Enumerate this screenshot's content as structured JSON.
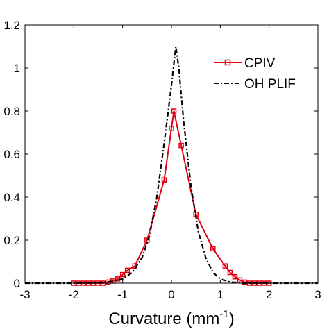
{
  "chart_data": {
    "type": "line",
    "title": "",
    "xlabel": "Curvature (mm",
    "xlabel_sup": "-1",
    "xlabel_close": ")",
    "ylabel": "",
    "xlim": [
      -3,
      3
    ],
    "ylim": [
      0,
      1.2
    ],
    "xticks": [
      -3,
      -2,
      -1,
      0,
      1,
      2,
      3
    ],
    "xtick_labels": [
      "-3",
      "-2",
      "-1",
      "0",
      "1",
      "2",
      "3"
    ],
    "yticks": [
      0,
      0.2,
      0.4,
      0.6,
      0.8,
      1,
      1.2
    ],
    "ytick_labels": [
      "0",
      "0.2",
      "0.4",
      "0.6",
      "0.8",
      "1",
      "1.2"
    ],
    "grid": false,
    "legend_position": "top-right",
    "series": [
      {
        "name": "CPIV",
        "color": "#e0000f",
        "line_style": "solid",
        "marker": "open-square",
        "x": [
          -2.0,
          -1.9,
          -1.8,
          -1.7,
          -1.6,
          -1.5,
          -1.4,
          -1.3,
          -1.2,
          -1.1,
          -1.0,
          -0.9,
          -0.75,
          -0.5,
          -0.15,
          0.0,
          0.05,
          0.2,
          0.5,
          0.85,
          1.1,
          1.2,
          1.3,
          1.4,
          1.5,
          1.6,
          1.7,
          1.8,
          1.9,
          2.0
        ],
        "y": [
          0.0,
          0.0,
          0.0,
          0.0,
          0.0,
          0.0,
          0.0,
          0.005,
          0.01,
          0.02,
          0.04,
          0.06,
          0.08,
          0.2,
          0.48,
          0.72,
          0.8,
          0.64,
          0.32,
          0.16,
          0.08,
          0.05,
          0.03,
          0.015,
          0.005,
          0.0,
          0.0,
          0.0,
          0.0,
          0.0
        ]
      },
      {
        "name": "OH PLIF",
        "color": "#000000",
        "line_style": "dash-dot",
        "marker": "none",
        "x": [
          -3.0,
          -2.0,
          -1.5,
          -1.2,
          -1.0,
          -0.8,
          -0.6,
          -0.45,
          -0.3,
          -0.15,
          0.0,
          0.05,
          0.09,
          0.15,
          0.25,
          0.4,
          0.55,
          0.7,
          0.85,
          1.0,
          1.2,
          1.5,
          2.0,
          3.0
        ],
        "y": [
          0.0,
          0.0,
          0.002,
          0.008,
          0.02,
          0.05,
          0.12,
          0.22,
          0.4,
          0.65,
          0.92,
          1.02,
          1.1,
          1.0,
          0.75,
          0.45,
          0.24,
          0.12,
          0.05,
          0.02,
          0.005,
          0.0,
          0.0,
          0.0
        ]
      }
    ]
  }
}
